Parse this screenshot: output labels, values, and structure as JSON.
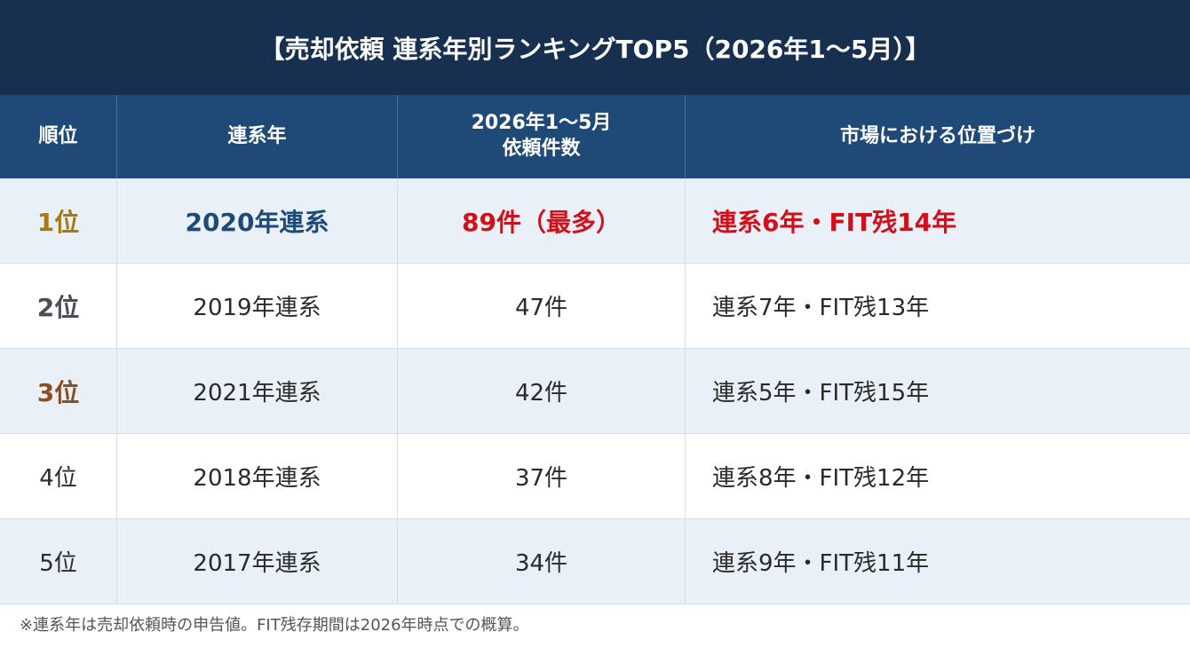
{
  "title": "【売却依頼 連系年別ランキングTOP5（2026年1〜5月）】",
  "headers": {
    "rank": "順位",
    "year": "連系年",
    "count": "2026年1〜5月\n依頼件数",
    "position": "市場における位置づけ"
  },
  "rows": [
    {
      "rank": "1位",
      "year": "2020年連系",
      "count": "89件（最多）",
      "position": "連系6年・FIT残14年"
    },
    {
      "rank": "2位",
      "year": "2019年連系",
      "count": "47件",
      "position": "連系7年・FIT残13年"
    },
    {
      "rank": "3位",
      "year": "2021年連系",
      "count": "42件",
      "position": "連系5年・FIT残15年"
    },
    {
      "rank": "4位",
      "year": "2018年連系",
      "count": "37件",
      "position": "連系8年・FIT残12年"
    },
    {
      "rank": "5位",
      "year": "2017年連系",
      "count": "34件",
      "position": "連系9年・FIT残11年"
    }
  ],
  "footnote": "※連系年は売却依頼時の申告値。FIT残存期間は2026年時点での概算。",
  "colors": {
    "title_bg": "#17304f",
    "header_bg": "#1f4a78",
    "row_shade": "#e9f0f8",
    "gold": "#a57a12",
    "silver": "#4a4f57",
    "bronze": "#8a4e22",
    "highlight_red": "#d0101a",
    "highlight_blue": "#1f4a78"
  }
}
